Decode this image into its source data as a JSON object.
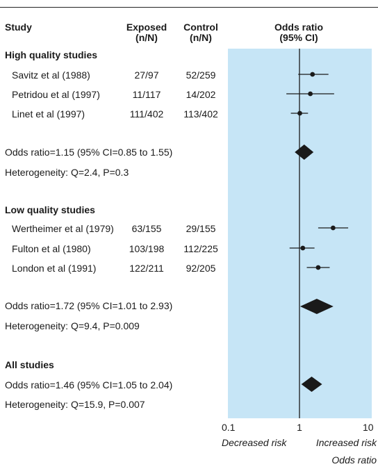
{
  "headers": {
    "study": "Study",
    "exposed": [
      "Exposed",
      "(n/N)"
    ],
    "control": [
      "Control",
      "(n/N)"
    ],
    "or": [
      "Odds ratio",
      "(95% CI)"
    ]
  },
  "groups": [
    {
      "title": "High quality studies",
      "studies": [
        {
          "name": "Savitz et al (1988)",
          "exposed": "27/97",
          "control": "52/259"
        },
        {
          "name": "Petridou et al (1997)",
          "exposed": "11/117",
          "control": "14/202"
        },
        {
          "name": "Linet et al (1997)",
          "exposed": "111/402",
          "control": "113/402"
        }
      ],
      "summary": "Odds ratio=1.15 (95% CI=0.85 to 1.55)",
      "heterogeneity": "Heterogeneity: Q=2.4, P=0.3"
    },
    {
      "title": "Low quality studies",
      "studies": [
        {
          "name": "Wertheimer et al (1979)",
          "exposed": "63/155",
          "control": "29/155"
        },
        {
          "name": "Fulton et al (1980)",
          "exposed": "103/198",
          "control": "112/225"
        },
        {
          "name": "London et al (1991)",
          "exposed": "122/211",
          "control": "92/205"
        }
      ],
      "summary": "Odds ratio=1.72 (95% CI=1.01 to 2.93)",
      "heterogeneity": "Heterogeneity: Q=9.4, P=0.009"
    },
    {
      "title": "All studies",
      "studies": [],
      "summary": "Odds ratio=1.46 (95% CI=1.05 to 2.04)",
      "heterogeneity": "Heterogeneity: Q=15.9, P=0.007"
    }
  ],
  "axis": {
    "ticks": [
      "0.1",
      "1",
      "10"
    ],
    "left_label": "Decreased risk",
    "right_label": "Increased risk",
    "title": "Odds ratio"
  },
  "colors": {
    "plot_bg": "#c6e5f6",
    "ink": "#1a1a1a"
  },
  "chart_data": {
    "type": "forest",
    "scale": "log",
    "xlim": [
      0.1,
      10
    ],
    "reference_line": 1,
    "grid": false,
    "studies": [
      {
        "group": "High quality studies",
        "name": "Savitz et al (1988)",
        "or": 1.5,
        "ci": [
          0.95,
          2.5
        ]
      },
      {
        "group": "High quality studies",
        "name": "Petridou et al (1997)",
        "or": 1.4,
        "ci": [
          0.65,
          3.0
        ]
      },
      {
        "group": "High quality studies",
        "name": "Linet et al (1997)",
        "or": 1.0,
        "ci": [
          0.75,
          1.3
        ]
      },
      {
        "group": "Low quality studies",
        "name": "Wertheimer et al (1979)",
        "or": 2.9,
        "ci": [
          1.8,
          4.7
        ]
      },
      {
        "group": "Low quality studies",
        "name": "Fulton et al (1980)",
        "or": 1.1,
        "ci": [
          0.72,
          1.6
        ]
      },
      {
        "group": "Low quality studies",
        "name": "London et al (1991)",
        "or": 1.8,
        "ci": [
          1.25,
          2.6
        ]
      }
    ],
    "summaries": [
      {
        "group": "High quality studies",
        "or": 1.15,
        "ci": [
          0.85,
          1.55
        ]
      },
      {
        "group": "Low quality studies",
        "or": 1.72,
        "ci": [
          1.01,
          2.93
        ]
      },
      {
        "group": "All studies",
        "or": 1.46,
        "ci": [
          1.05,
          2.04
        ]
      }
    ]
  }
}
